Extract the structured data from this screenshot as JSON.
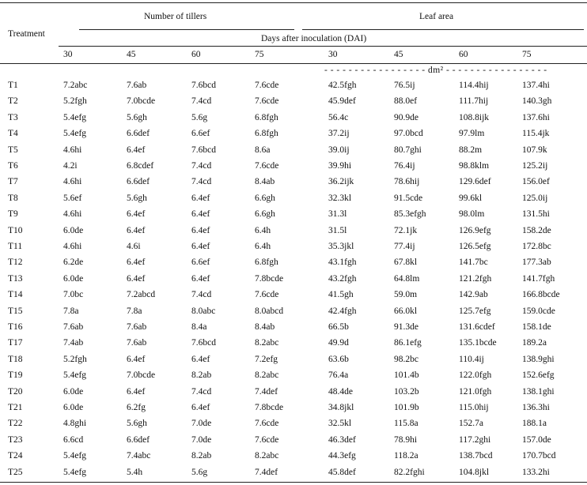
{
  "table": {
    "header": {
      "treatment": "Treatment",
      "tillers": "Number of tillers",
      "leaf_area": "Leaf area",
      "dai": "Days after inoculation (DAI)",
      "days": [
        "30",
        "45",
        "60",
        "75",
        "30",
        "45",
        "60",
        "75"
      ],
      "unit": "- - - - - - - - - - - - - - - - - dm² - - - - - - - - - - - - - - - - -"
    },
    "rows": [
      [
        "T1",
        "7.2abc",
        "7.6ab",
        "7.6bcd",
        "7.6cde",
        "42.5fgh",
        "76.5ij",
        "114.4hij",
        "137.4hi"
      ],
      [
        "T2",
        "5.2fgh",
        "7.0bcde",
        "7.4cd",
        "7.6cde",
        "45.9def",
        "88.0ef",
        "111.7hij",
        "140.3gh"
      ],
      [
        "T3",
        "5.4efg",
        "5.6gh",
        "5.6g",
        "6.8fgh",
        "56.4c",
        "90.9de",
        "108.8ijk",
        "137.6hi"
      ],
      [
        "T4",
        "5.4efg",
        "6.6def",
        "6.6ef",
        "6.8fgh",
        "37.2ij",
        "97.0bcd",
        "97.9lm",
        "115.4jk"
      ],
      [
        "T5",
        "4.6hi",
        "6.4ef",
        "7.6bcd",
        "8.6a",
        "39.0ij",
        "80.7ghi",
        "88.2m",
        "107.9k"
      ],
      [
        "T6",
        "4.2i",
        "6.8cdef",
        "7.4cd",
        "7.6cde",
        "39.9hi",
        "76.4ij",
        "98.8klm",
        "125.2ij"
      ],
      [
        "T7",
        "4.6hi",
        "6.6def",
        "7.4cd",
        "8.4ab",
        "36.2ijk",
        "78.6hij",
        "129.6def",
        "156.0ef"
      ],
      [
        "T8",
        "5.6ef",
        "5.6gh",
        "6.4ef",
        "6.6gh",
        "32.3kl",
        "91.5cde",
        "99.6kl",
        "125.0ij"
      ],
      [
        "T9",
        "4.6hi",
        "6.4ef",
        "6.4ef",
        "6.6gh",
        "31.3l",
        "85.3efgh",
        "98.0lm",
        "131.5hi"
      ],
      [
        "T10",
        "6.0de",
        "6.4ef",
        "6.4ef",
        "6.4h",
        "31.5l",
        "72.1jk",
        "126.9efg",
        "158.2de"
      ],
      [
        "T11",
        "4.6hi",
        "4.6i",
        "6.4ef",
        "6.4h",
        "35.3jkl",
        "77.4ij",
        "126.5efg",
        "172.8bc"
      ],
      [
        "T12",
        "6.2de",
        "6.4ef",
        "6.6ef",
        "6.8fgh",
        "43.1fgh",
        "67.8kl",
        "141.7bc",
        "177.3ab"
      ],
      [
        "T13",
        "6.0de",
        "6.4ef",
        "6.4ef",
        "7.8bcde",
        "43.2fgh",
        "64.8lm",
        "121.2fgh",
        "141.7fgh"
      ],
      [
        "T14",
        "7.0bc",
        "7.2abcd",
        "7.4cd",
        "7.6cde",
        "41.5gh",
        "59.0m",
        "142.9ab",
        "166.8bcde"
      ],
      [
        "T15",
        "7.8a",
        "7.8a",
        "8.0abc",
        "8.0abcd",
        "42.4fgh",
        "66.0kl",
        "125.7efg",
        "159.0cde"
      ],
      [
        "T16",
        "7.6ab",
        "7.6ab",
        "8.4a",
        "8.4ab",
        "66.5b",
        "91.3de",
        "131.6cdef",
        "158.1de"
      ],
      [
        "T17",
        "7.4ab",
        "7.6ab",
        "7.6bcd",
        "8.2abc",
        "49.9d",
        "86.1efg",
        "135.1bcde",
        "189.2a"
      ],
      [
        "T18",
        "5.2fgh",
        "6.4ef",
        "6.4ef",
        "7.2efg",
        "63.6b",
        "98.2bc",
        "110.4ij",
        "138.9ghi"
      ],
      [
        "T19",
        "5.4efg",
        "7.0bcde",
        "8.2ab",
        "8.2abc",
        "76.4a",
        "101.4b",
        "122.0fgh",
        "152.6efg"
      ],
      [
        "T20",
        "6.0de",
        "6.4ef",
        "7.4cd",
        "7.4def",
        "48.4de",
        "103.2b",
        "121.0fgh",
        "138.1ghi"
      ],
      [
        "T21",
        "6.0de",
        "6.2fg",
        "6.4ef",
        "7.8bcde",
        "34.8jkl",
        "101.9b",
        "115.0hij",
        "136.3hi"
      ],
      [
        "T22",
        "4.8ghi",
        "5.6gh",
        "7.0de",
        "7.6cde",
        "32.5kl",
        "115.8a",
        "152.7a",
        "188.1a"
      ],
      [
        "T23",
        "6.6cd",
        "6.6def",
        "7.0de",
        "7.6cde",
        "46.3def",
        "78.9hi",
        "117.2ghi",
        "157.0de"
      ],
      [
        "T24",
        "5.4efg",
        "7.4abc",
        "8.2ab",
        "8.2abc",
        "44.3efg",
        "118.2a",
        "138.7bcd",
        "170.7bcd"
      ],
      [
        "T25",
        "5.4efg",
        "5.4h",
        "5.6g",
        "7.4def",
        "45.8def",
        "82.2fghi",
        "104.8jkl",
        "133.2hi"
      ]
    ]
  }
}
